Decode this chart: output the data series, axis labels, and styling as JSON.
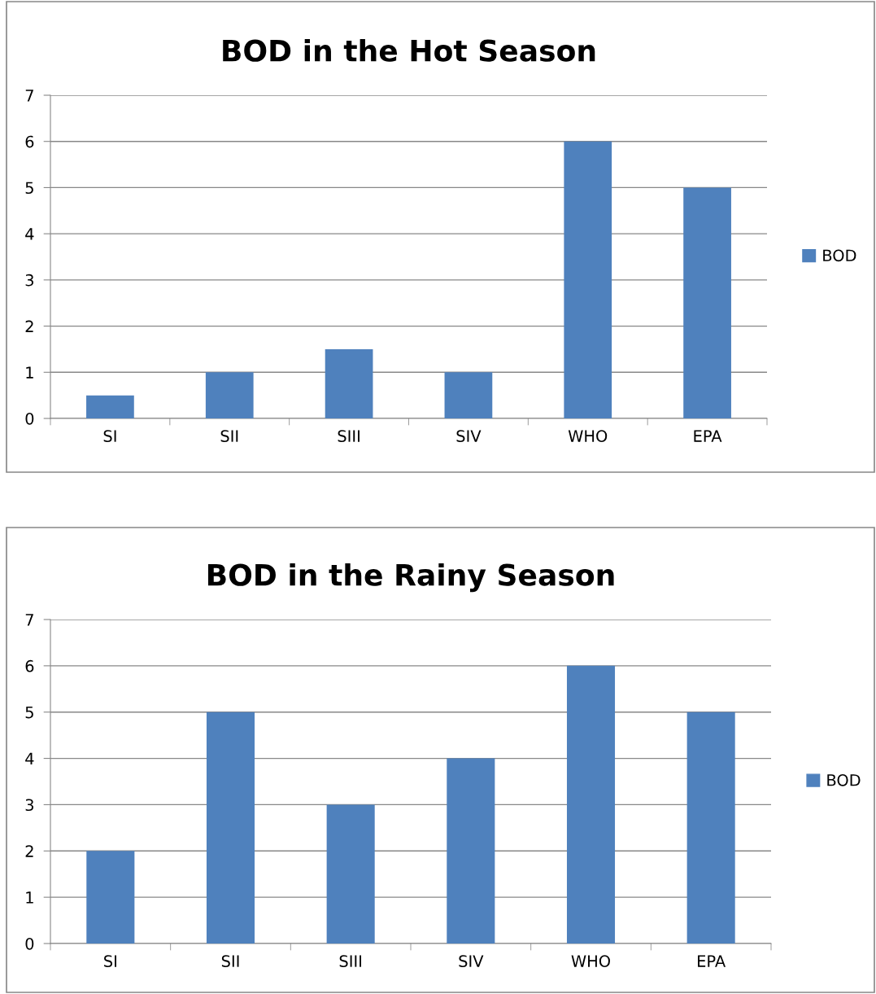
{
  "chart_data": [
    {
      "type": "bar",
      "title": "BOD in the Hot Season",
      "categories": [
        "SI",
        "SII",
        "SIII",
        "SIV",
        "WHO",
        "EPA"
      ],
      "series": [
        {
          "name": "BOD",
          "color": "#4f81bd",
          "values": [
            0.5,
            1,
            1.5,
            1,
            6,
            5
          ]
        }
      ],
      "ylim": [
        0,
        7
      ],
      "yticks": [
        0,
        1,
        2,
        3,
        4,
        5,
        6,
        7
      ],
      "grid": "y",
      "legend": "right"
    },
    {
      "type": "bar",
      "title": "BOD in the Rainy Season",
      "categories": [
        "SI",
        "SII",
        "SIII",
        "SIV",
        "WHO",
        "EPA"
      ],
      "series": [
        {
          "name": "BOD",
          "color": "#4f81bd",
          "values": [
            2,
            5,
            3,
            4,
            6,
            5
          ]
        }
      ],
      "ylim": [
        0,
        7
      ],
      "yticks": [
        0,
        1,
        2,
        3,
        4,
        5,
        6,
        7
      ],
      "grid": "y",
      "legend": "right"
    }
  ]
}
